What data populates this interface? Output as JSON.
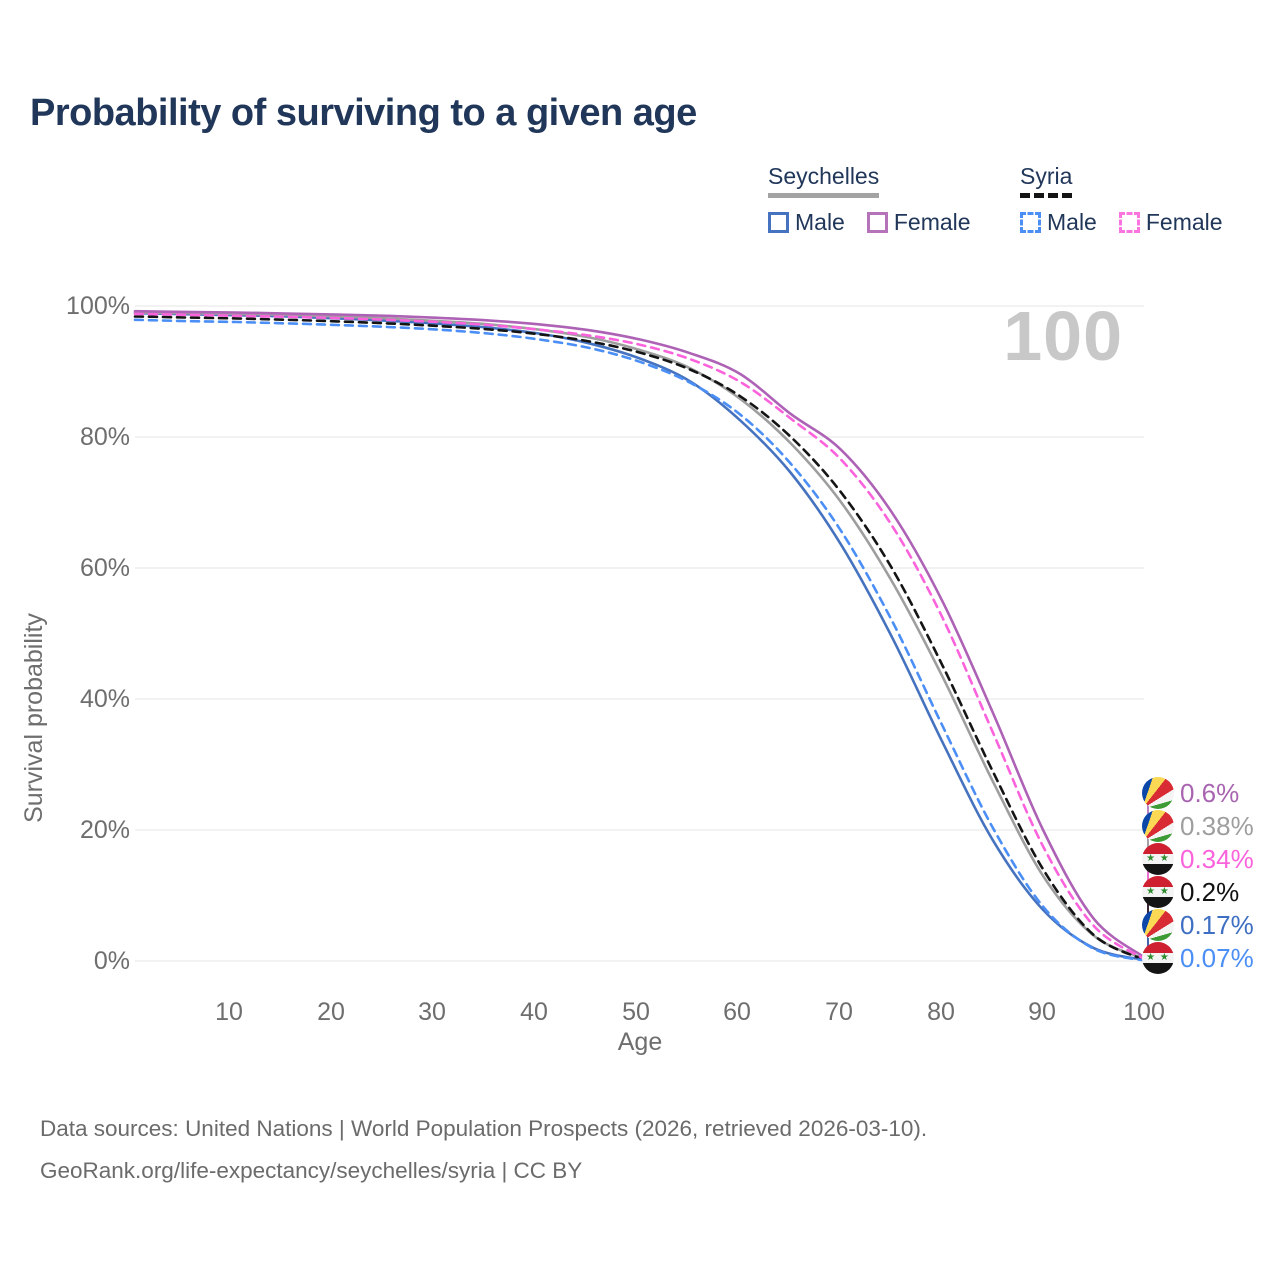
{
  "title": "Probability of surviving to a given age",
  "watermark": "100",
  "legend": {
    "groups": [
      {
        "country": "Seychelles",
        "line_style": "solid",
        "underline_color": "#a3a3a3",
        "items": [
          {
            "label": "Male",
            "color": "#4673bf"
          },
          {
            "label": "Female",
            "color": "#b573b9"
          }
        ]
      },
      {
        "country": "Syria",
        "line_style": "dashed",
        "underline_color": "#141414",
        "items": [
          {
            "label": "Male",
            "color": "#4b8ff6"
          },
          {
            "label": "Female",
            "color": "#fb74e0"
          }
        ]
      }
    ]
  },
  "axes": {
    "y_label": "Survival probability",
    "x_label": "Age",
    "y_ticks": [
      "0%",
      "20%",
      "40%",
      "60%",
      "80%",
      "100%"
    ],
    "x_ticks": [
      "10",
      "20",
      "30",
      "40",
      "50",
      "60",
      "70",
      "80",
      "90",
      "100"
    ]
  },
  "end_labels": [
    {
      "value": "0.6%",
      "flag": "seychelles",
      "series": "seychelles_female",
      "color": "#a864b0"
    },
    {
      "value": "0.38%",
      "flag": "seychelles",
      "series": "seychelles_both",
      "color": "#9e9e9e"
    },
    {
      "value": "0.34%",
      "flag": "syria",
      "series": "syria_female",
      "color": "#fb63dc"
    },
    {
      "value": "0.2%",
      "flag": "syria",
      "series": "syria_both",
      "color": "#111111"
    },
    {
      "value": "0.17%",
      "flag": "seychelles",
      "series": "seychelles_male",
      "color": "#3f6fc2"
    },
    {
      "value": "0.07%",
      "flag": "syria",
      "series": "syria_male",
      "color": "#4b8ff6"
    }
  ],
  "footer": {
    "line1": "Data sources: United Nations | World Population Prospects (2026, retrieved 2026-03-10).",
    "line2": "GeoRank.org/life-expectancy/seychelles/syria | CC BY"
  },
  "chart_data": {
    "type": "line",
    "title": "Probability of surviving to a given age",
    "xlabel": "Age",
    "ylabel": "Survival probability",
    "xlim": [
      0,
      100
    ],
    "ylim": [
      0,
      100
    ],
    "grid": "horizontal",
    "legend_position": "top-right",
    "x": [
      0,
      5,
      10,
      15,
      20,
      25,
      30,
      35,
      40,
      45,
      50,
      55,
      60,
      65,
      70,
      75,
      80,
      85,
      90,
      95,
      100
    ],
    "series": [
      {
        "key": "seychelles_male",
        "name": "Seychelles Male",
        "color": "#4673bf",
        "dash": false,
        "values": [
          98.9,
          98.75,
          98.6,
          98.4,
          98.1,
          97.75,
          97.3,
          96.7,
          95.8,
          94.3,
          92.0,
          88.5,
          82.5,
          74.5,
          63.5,
          49.5,
          33.5,
          18.5,
          7.8,
          2.0,
          0.17
        ]
      },
      {
        "key": "seychelles_both",
        "name": "Seychelles Both sexes",
        "color": "#9e9e9e",
        "dash": false,
        "values": [
          99.0,
          98.9,
          98.8,
          98.65,
          98.4,
          98.1,
          97.7,
          97.2,
          96.4,
          95.2,
          93.3,
          90.5,
          85.8,
          79.0,
          70.0,
          58.0,
          43.5,
          27.5,
          13.0,
          3.9,
          0.38
        ]
      },
      {
        "key": "seychelles_female",
        "name": "Seychelles Female",
        "color": "#ad62b5",
        "dash": false,
        "values": [
          99.2,
          99.1,
          99.0,
          98.85,
          98.7,
          98.5,
          98.2,
          97.8,
          97.2,
          96.3,
          94.9,
          92.8,
          89.6,
          83.5,
          78.0,
          68.5,
          55.0,
          38.0,
          20.0,
          6.5,
          0.6
        ]
      },
      {
        "key": "syria_both",
        "name": "Syria Both sexes",
        "color": "#141414",
        "dash": true,
        "values": [
          98.4,
          98.25,
          98.1,
          97.9,
          97.65,
          97.35,
          96.95,
          96.45,
          95.7,
          94.6,
          92.9,
          90.3,
          86.2,
          80.0,
          71.5,
          60.0,
          45.2,
          29.0,
          14.0,
          4.0,
          0.2
        ]
      },
      {
        "key": "syria_male",
        "name": "Syria Male",
        "color": "#4b8ff6",
        "dash": true,
        "values": [
          97.9,
          97.7,
          97.55,
          97.35,
          97.1,
          96.8,
          96.4,
          95.8,
          94.9,
          93.6,
          91.5,
          88.3,
          83.4,
          75.9,
          65.6,
          52.0,
          36.0,
          20.4,
          8.3,
          1.9,
          0.07
        ]
      },
      {
        "key": "syria_female",
        "name": "Syria Female",
        "color": "#fb63dc",
        "dash": true,
        "values": [
          98.8,
          98.65,
          98.5,
          98.35,
          98.15,
          97.9,
          97.55,
          97.1,
          96.4,
          95.5,
          94.1,
          91.9,
          88.4,
          82.8,
          76.5,
          66.5,
          52.5,
          35.0,
          17.5,
          5.4,
          0.34
        ]
      }
    ],
    "end_values_pct_at_age_100": {
      "seychelles_female": 0.6,
      "seychelles_both": 0.38,
      "syria_female": 0.34,
      "syria_both": 0.2,
      "seychelles_male": 0.17,
      "syria_male": 0.07
    }
  }
}
